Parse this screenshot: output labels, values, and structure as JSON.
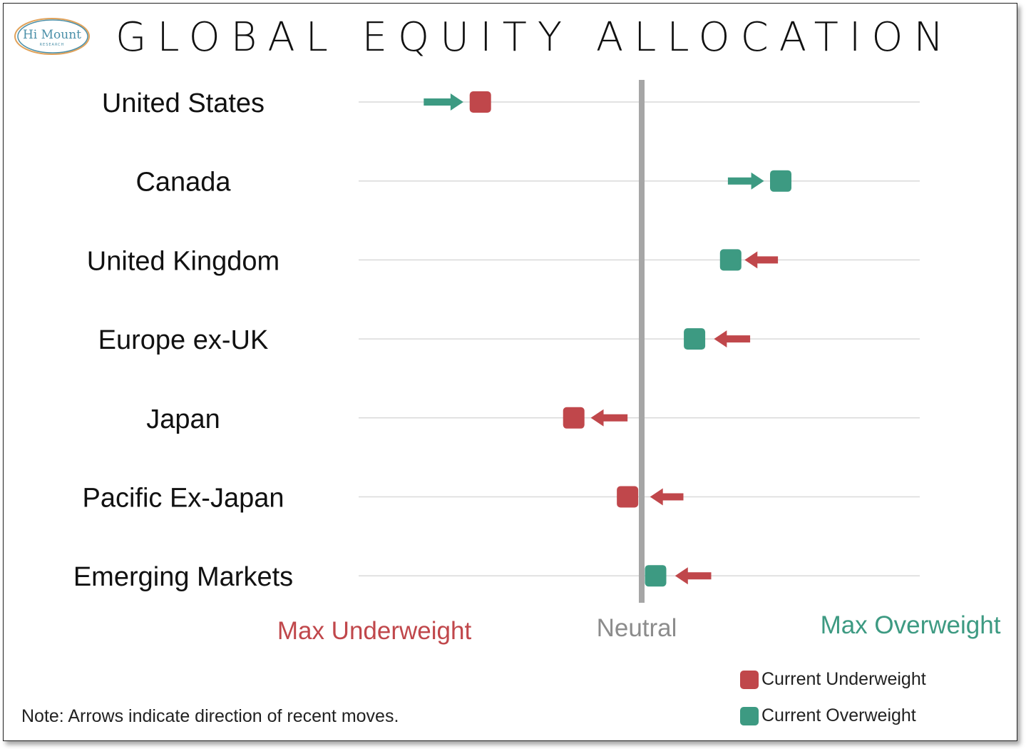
{
  "header": {
    "title": "GLOBAL EQUITY ALLOCATION",
    "logo_text": "Hi Mount",
    "logo_subtext": "RESEARCH"
  },
  "colors": {
    "underweight": "#c0474b",
    "overweight": "#3d9a82",
    "neutral": "#a6a6a6",
    "gridline": "#d9d9d9"
  },
  "chart_data": {
    "type": "scatter",
    "title": "GLOBAL EQUITY ALLOCATION",
    "x_scale": [
      -1,
      1
    ],
    "x_labels": {
      "min": "Max Underweight",
      "mid": "Neutral",
      "max": "Max Overweight"
    },
    "categories": [
      "United States",
      "Canada",
      "United Kingdom",
      "Europe ex-UK",
      "Japan",
      "Pacific Ex-Japan",
      "Emerging Markets"
    ],
    "values": [
      -0.57,
      0.5,
      0.32,
      0.19,
      -0.24,
      -0.05,
      0.05
    ],
    "status": [
      "underweight",
      "overweight",
      "overweight",
      "overweight",
      "underweight",
      "underweight",
      "overweight"
    ],
    "arrows": [
      {
        "from": -0.77,
        "to": -0.63,
        "direction": "right",
        "color": "overweight"
      },
      {
        "from": 0.31,
        "to": 0.44,
        "direction": "right",
        "color": "overweight"
      },
      {
        "from": 0.49,
        "to": 0.37,
        "direction": "left",
        "color": "underweight"
      },
      {
        "from": 0.39,
        "to": 0.26,
        "direction": "left",
        "color": "underweight"
      },
      {
        "from": -0.05,
        "to": -0.18,
        "direction": "left",
        "color": "underweight"
      },
      {
        "from": 0.15,
        "to": 0.03,
        "direction": "left",
        "color": "underweight"
      },
      {
        "from": 0.25,
        "to": 0.12,
        "direction": "left",
        "color": "underweight"
      }
    ],
    "grid": true
  },
  "legend": {
    "items": [
      {
        "label": "Current Underweight",
        "color": "#c0474b"
      },
      {
        "label": "Current Overweight",
        "color": "#3d9a82"
      }
    ]
  },
  "note": "Note: Arrows indicate direction of recent moves."
}
